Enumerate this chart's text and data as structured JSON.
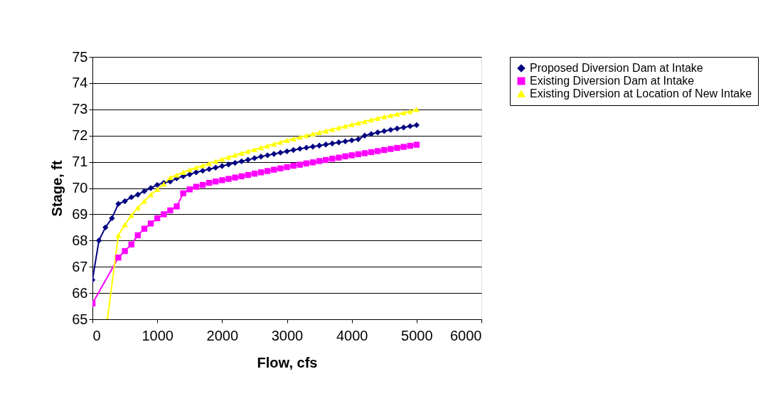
{
  "chart_data": {
    "type": "line",
    "xlabel": "Flow, cfs",
    "ylabel": "Stage, ft",
    "xlim": [
      0,
      6000
    ],
    "xticks": [
      0,
      1000,
      2000,
      3000,
      4000,
      5000,
      6000
    ],
    "ylim": [
      65,
      75
    ],
    "yticks": [
      65,
      66,
      67,
      68,
      69,
      70,
      71,
      72,
      73,
      74,
      75
    ],
    "grid": "y",
    "legend": "right",
    "line_style": "solid",
    "series": [
      {
        "name": "Proposed Diversion Dam at Intake",
        "color": "#000080",
        "marker": "diamond",
        "x": [
          0,
          100,
          200,
          300,
          400,
          500,
          600,
          700,
          800,
          900,
          1000,
          1100,
          1200,
          1300,
          1400,
          1500,
          1600,
          1700,
          1800,
          1900,
          2000,
          2100,
          2200,
          2300,
          2400,
          2500,
          2600,
          2700,
          2800,
          2900,
          3000,
          3100,
          3200,
          3300,
          3400,
          3500,
          3600,
          3700,
          3800,
          3900,
          4000,
          4100,
          4200,
          4300,
          4400,
          4500,
          4600,
          4700,
          4800,
          4900,
          5000
        ],
        "values": [
          66.5,
          68.0,
          68.5,
          68.85,
          69.4,
          69.5,
          69.65,
          69.75,
          69.88,
          70.0,
          70.12,
          70.2,
          70.25,
          70.37,
          70.45,
          70.52,
          70.6,
          70.66,
          70.72,
          70.78,
          70.84,
          70.9,
          70.96,
          71.02,
          71.08,
          71.14,
          71.2,
          71.25,
          71.3,
          71.35,
          71.4,
          71.45,
          71.5,
          71.54,
          71.58,
          71.62,
          71.66,
          71.7,
          71.74,
          71.78,
          71.82,
          71.86,
          72.0,
          72.06,
          72.12,
          72.17,
          72.22,
          72.27,
          72.31,
          72.36,
          72.4
        ]
      },
      {
        "name": "Existing  Diversion Dam at Intake",
        "color": "#ff00ff",
        "marker": "square",
        "x": [
          0,
          400,
          500,
          600,
          700,
          800,
          900,
          1000,
          1100,
          1200,
          1300,
          1400,
          1500,
          1600,
          1700,
          1800,
          1900,
          2000,
          2100,
          2200,
          2300,
          2400,
          2500,
          2600,
          2700,
          2800,
          2900,
          3000,
          3100,
          3200,
          3300,
          3400,
          3500,
          3600,
          3700,
          3800,
          3900,
          4000,
          4100,
          4200,
          4300,
          4400,
          4500,
          4600,
          4700,
          4800,
          4900,
          5000
        ],
        "values": [
          65.6,
          67.35,
          67.6,
          67.85,
          68.2,
          68.45,
          68.65,
          68.85,
          69.0,
          69.15,
          69.3,
          69.8,
          69.95,
          70.05,
          70.12,
          70.2,
          70.25,
          70.3,
          70.35,
          70.4,
          70.45,
          70.5,
          70.55,
          70.6,
          70.65,
          70.7,
          70.75,
          70.8,
          70.85,
          70.89,
          70.94,
          70.98,
          71.03,
          71.07,
          71.12,
          71.16,
          71.21,
          71.25,
          71.29,
          71.33,
          71.37,
          71.41,
          71.45,
          71.49,
          71.53,
          71.57,
          71.61,
          71.65
        ]
      },
      {
        "name": "Existing Diversion at Location of New Intake",
        "color": "#ffff00",
        "marker": "triangle",
        "x": [
          230,
          400,
          500,
          600,
          700,
          800,
          900,
          1000,
          1100,
          1200,
          1300,
          1400,
          1500,
          1600,
          1700,
          1800,
          1900,
          2000,
          2100,
          2200,
          2300,
          2400,
          2500,
          2600,
          2700,
          2800,
          2900,
          3000,
          3100,
          3200,
          3300,
          3400,
          3500,
          3600,
          3700,
          3800,
          3900,
          4000,
          4100,
          4200,
          4300,
          4400,
          4500,
          4600,
          4700,
          4800,
          4900,
          5000
        ],
        "values": [
          65.0,
          68.2,
          68.6,
          68.95,
          69.25,
          69.5,
          69.75,
          69.95,
          70.15,
          70.4,
          70.5,
          70.6,
          70.7,
          70.78,
          70.86,
          70.94,
          71.02,
          71.1,
          71.18,
          71.26,
          71.33,
          71.4,
          71.47,
          71.54,
          71.61,
          71.68,
          71.75,
          71.82,
          71.88,
          71.94,
          72.0,
          72.06,
          72.12,
          72.18,
          72.24,
          72.3,
          72.36,
          72.42,
          72.48,
          72.54,
          72.6,
          72.66,
          72.72,
          72.77,
          72.82,
          72.87,
          72.92,
          73.0
        ]
      }
    ]
  }
}
